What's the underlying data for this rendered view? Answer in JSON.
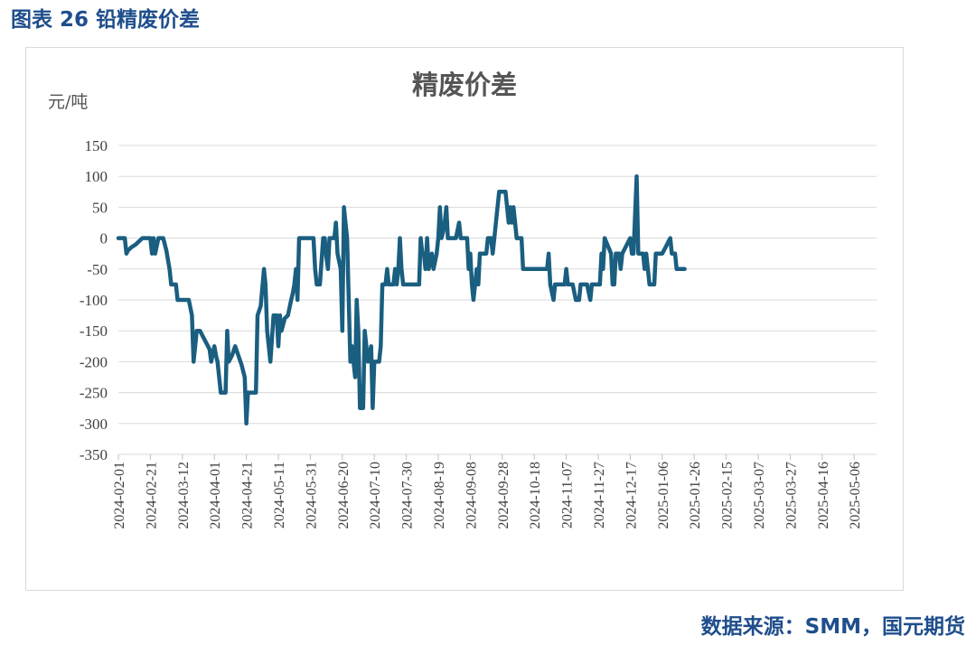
{
  "figure_title": "图表 26 铅精废价差",
  "source_note": "数据来源：SMM，国元期货",
  "colors": {
    "line": "#1a5e80",
    "grid": "#d9d9d9",
    "brand": "#1f4e8c"
  },
  "chart_data": {
    "type": "line",
    "title": "精废价差",
    "ylabel": "元/吨",
    "ylim": [
      -350,
      150
    ],
    "yticks": [
      150,
      100,
      50,
      0,
      -50,
      -100,
      -150,
      -200,
      -250,
      -300,
      -350
    ],
    "xlim": [
      "2024-02-01",
      "2025-05-20"
    ],
    "xticks": [
      "2024-02-01",
      "2024-02-21",
      "2024-03-12",
      "2024-04-01",
      "2024-04-21",
      "2024-05-11",
      "2024-05-31",
      "2024-06-20",
      "2024-07-10",
      "2024-07-30",
      "2024-08-19",
      "2024-09-08",
      "2024-09-28",
      "2024-10-18",
      "2024-11-07",
      "2024-11-27",
      "2024-12-17",
      "2025-01-06",
      "2025-01-26",
      "2025-02-15",
      "2025-03-07",
      "2025-03-27",
      "2025-04-16",
      "2025-05-06"
    ],
    "grid": true,
    "legend": "none",
    "series": [
      {
        "points": [
          [
            "2024-02-01",
            0
          ],
          [
            "2024-02-05",
            0
          ],
          [
            "2024-02-06",
            -25
          ],
          [
            "2024-02-07",
            -20
          ],
          [
            "2024-02-09",
            -15
          ],
          [
            "2024-02-12",
            -10
          ],
          [
            "2024-02-14",
            -5
          ],
          [
            "2024-02-16",
            0
          ],
          [
            "2024-02-19",
            0
          ],
          [
            "2024-02-20",
            0
          ],
          [
            "2024-02-21",
            0
          ],
          [
            "2024-02-22",
            -25
          ],
          [
            "2024-02-23",
            0
          ],
          [
            "2024-02-24",
            -25
          ],
          [
            "2024-02-26",
            0
          ],
          [
            "2024-02-27",
            0
          ],
          [
            "2024-02-29",
            0
          ],
          [
            "2024-03-02",
            -20
          ],
          [
            "2024-03-04",
            -50
          ],
          [
            "2024-03-05",
            -75
          ],
          [
            "2024-03-08",
            -75
          ],
          [
            "2024-03-09",
            -100
          ],
          [
            "2024-03-12",
            -100
          ],
          [
            "2024-03-16",
            -100
          ],
          [
            "2024-03-18",
            -125
          ],
          [
            "2024-03-19",
            -200
          ],
          [
            "2024-03-20",
            -175
          ],
          [
            "2024-03-21",
            -150
          ],
          [
            "2024-03-23",
            -150
          ],
          [
            "2024-03-25",
            -160
          ],
          [
            "2024-03-27",
            -170
          ],
          [
            "2024-03-29",
            -180
          ],
          [
            "2024-03-30",
            -200
          ],
          [
            "2024-04-01",
            -175
          ],
          [
            "2024-04-02",
            -190
          ],
          [
            "2024-04-03",
            -200
          ],
          [
            "2024-04-04",
            -225
          ],
          [
            "2024-04-05",
            -250
          ],
          [
            "2024-04-08",
            -250
          ],
          [
            "2024-04-09",
            -150
          ],
          [
            "2024-04-10",
            -200
          ],
          [
            "2024-04-12",
            -190
          ],
          [
            "2024-04-14",
            -175
          ],
          [
            "2024-04-16",
            -190
          ],
          [
            "2024-04-18",
            -205
          ],
          [
            "2024-04-20",
            -225
          ],
          [
            "2024-04-21",
            -300
          ],
          [
            "2024-04-22",
            -250
          ],
          [
            "2024-04-24",
            -250
          ],
          [
            "2024-04-27",
            -250
          ],
          [
            "2024-04-28",
            -125
          ],
          [
            "2024-04-30",
            -110
          ],
          [
            "2024-05-02",
            -50
          ],
          [
            "2024-05-03",
            -75
          ],
          [
            "2024-05-04",
            -150
          ],
          [
            "2024-05-06",
            -200
          ],
          [
            "2024-05-08",
            -125
          ],
          [
            "2024-05-10",
            -125
          ],
          [
            "2024-05-11",
            -175
          ],
          [
            "2024-05-12",
            -125
          ],
          [
            "2024-05-13",
            -150
          ],
          [
            "2024-05-15",
            -130
          ],
          [
            "2024-05-17",
            -125
          ],
          [
            "2024-05-19",
            -100
          ],
          [
            "2024-05-20",
            -90
          ],
          [
            "2024-05-21",
            -75
          ],
          [
            "2024-05-22",
            -50
          ],
          [
            "2024-05-23",
            -100
          ],
          [
            "2024-05-24",
            0
          ],
          [
            "2024-05-28",
            0
          ],
          [
            "2024-05-31",
            0
          ],
          [
            "2024-06-02",
            0
          ],
          [
            "2024-06-03",
            -50
          ],
          [
            "2024-06-04",
            -75
          ],
          [
            "2024-06-06",
            -75
          ],
          [
            "2024-06-08",
            0
          ],
          [
            "2024-06-09",
            0
          ],
          [
            "2024-06-10",
            -30
          ],
          [
            "2024-06-11",
            -50
          ],
          [
            "2024-06-12",
            0
          ],
          [
            "2024-06-15",
            0
          ],
          [
            "2024-06-16",
            25
          ],
          [
            "2024-06-17",
            -25
          ],
          [
            "2024-06-19",
            -50
          ],
          [
            "2024-06-20",
            -150
          ],
          [
            "2024-06-21",
            50
          ],
          [
            "2024-06-22",
            25
          ],
          [
            "2024-06-23",
            0
          ],
          [
            "2024-06-24",
            -100
          ],
          [
            "2024-06-25",
            -200
          ],
          [
            "2024-06-26",
            -175
          ],
          [
            "2024-06-27",
            -200
          ],
          [
            "2024-06-28",
            -225
          ],
          [
            "2024-06-29",
            -100
          ],
          [
            "2024-06-30",
            -150
          ],
          [
            "2024-07-01",
            -275
          ],
          [
            "2024-07-03",
            -275
          ],
          [
            "2024-07-04",
            -150
          ],
          [
            "2024-07-05",
            -175
          ],
          [
            "2024-07-06",
            -200
          ],
          [
            "2024-07-07",
            -190
          ],
          [
            "2024-07-08",
            -175
          ],
          [
            "2024-07-09",
            -275
          ],
          [
            "2024-07-10",
            -200
          ],
          [
            "2024-07-13",
            -200
          ],
          [
            "2024-07-14",
            -175
          ],
          [
            "2024-07-15",
            -75
          ],
          [
            "2024-07-17",
            -75
          ],
          [
            "2024-07-18",
            -50
          ],
          [
            "2024-07-19",
            -75
          ],
          [
            "2024-07-22",
            -75
          ],
          [
            "2024-07-23",
            -50
          ],
          [
            "2024-07-24",
            -75
          ],
          [
            "2024-07-25",
            -50
          ],
          [
            "2024-07-26",
            0
          ],
          [
            "2024-07-27",
            -50
          ],
          [
            "2024-07-28",
            -75
          ],
          [
            "2024-07-30",
            -75
          ],
          [
            "2024-08-05",
            -75
          ],
          [
            "2024-08-07",
            -75
          ],
          [
            "2024-08-08",
            0
          ],
          [
            "2024-08-09",
            -25
          ],
          [
            "2024-08-10",
            -25
          ],
          [
            "2024-08-11",
            -50
          ],
          [
            "2024-08-12",
            0
          ],
          [
            "2024-08-13",
            -50
          ],
          [
            "2024-08-15",
            -25
          ],
          [
            "2024-08-16",
            -50
          ],
          [
            "2024-08-18",
            -25
          ],
          [
            "2024-08-19",
            0
          ],
          [
            "2024-08-20",
            50
          ],
          [
            "2024-08-21",
            0
          ],
          [
            "2024-08-22",
            10
          ],
          [
            "2024-08-23",
            25
          ],
          [
            "2024-08-24",
            50
          ],
          [
            "2024-08-25",
            0
          ],
          [
            "2024-08-30",
            0
          ],
          [
            "2024-09-01",
            25
          ],
          [
            "2024-09-02",
            0
          ],
          [
            "2024-09-06",
            0
          ],
          [
            "2024-09-07",
            -50
          ],
          [
            "2024-09-08",
            -25
          ],
          [
            "2024-09-09",
            -75
          ],
          [
            "2024-09-10",
            -100
          ],
          [
            "2024-09-11",
            -75
          ],
          [
            "2024-09-12",
            -50
          ],
          [
            "2024-09-13",
            -75
          ],
          [
            "2024-09-14",
            -25
          ],
          [
            "2024-09-18",
            -25
          ],
          [
            "2024-09-19",
            0
          ],
          [
            "2024-09-20",
            0
          ],
          [
            "2024-09-21",
            0
          ],
          [
            "2024-09-22",
            -25
          ],
          [
            "2024-09-23",
            0
          ],
          [
            "2024-09-26",
            75
          ],
          [
            "2024-09-27",
            75
          ],
          [
            "2024-09-30",
            75
          ],
          [
            "2024-10-02",
            25
          ],
          [
            "2024-10-03",
            50
          ],
          [
            "2024-10-04",
            25
          ],
          [
            "2024-10-05",
            50
          ],
          [
            "2024-10-06",
            25
          ],
          [
            "2024-10-07",
            0
          ],
          [
            "2024-10-10",
            0
          ],
          [
            "2024-10-11",
            -50
          ],
          [
            "2024-10-15",
            -50
          ],
          [
            "2024-10-26",
            -50
          ],
          [
            "2024-10-27",
            -25
          ],
          [
            "2024-10-28",
            -75
          ],
          [
            "2024-10-30",
            -100
          ],
          [
            "2024-10-31",
            -75
          ],
          [
            "2024-11-03",
            -75
          ],
          [
            "2024-11-05",
            -75
          ],
          [
            "2024-11-06",
            -75
          ],
          [
            "2024-11-07",
            -50
          ],
          [
            "2024-11-08",
            -75
          ],
          [
            "2024-11-11",
            -75
          ],
          [
            "2024-11-13",
            -100
          ],
          [
            "2024-11-15",
            -100
          ],
          [
            "2024-11-16",
            -75
          ],
          [
            "2024-11-18",
            -75
          ],
          [
            "2024-11-20",
            -75
          ],
          [
            "2024-11-22",
            -100
          ],
          [
            "2024-11-23",
            -75
          ],
          [
            "2024-11-25",
            -75
          ],
          [
            "2024-11-28",
            -75
          ],
          [
            "2024-11-29",
            -25
          ],
          [
            "2024-11-30",
            -50
          ],
          [
            "2024-12-01",
            0
          ],
          [
            "2024-12-05",
            -25
          ],
          [
            "2024-12-06",
            -75
          ],
          [
            "2024-12-07",
            -75
          ],
          [
            "2024-12-08",
            -25
          ],
          [
            "2024-12-09",
            -25
          ],
          [
            "2024-12-10",
            -25
          ],
          [
            "2024-12-11",
            -50
          ],
          [
            "2024-12-12",
            -25
          ],
          [
            "2024-12-14",
            -15
          ],
          [
            "2024-12-16",
            -5
          ],
          [
            "2024-12-17",
            0
          ],
          [
            "2024-12-18",
            -25
          ],
          [
            "2024-12-19",
            -25
          ],
          [
            "2024-12-21",
            100
          ],
          [
            "2024-12-22",
            -25
          ],
          [
            "2024-12-23",
            -25
          ],
          [
            "2024-12-25",
            -25
          ],
          [
            "2024-12-26",
            -50
          ],
          [
            "2024-12-27",
            -25
          ],
          [
            "2024-12-28",
            -50
          ],
          [
            "2024-12-29",
            -75
          ],
          [
            "2025-01-01",
            -75
          ],
          [
            "2025-01-02",
            -25
          ],
          [
            "2025-01-04",
            -25
          ],
          [
            "2025-01-06",
            -25
          ],
          [
            "2025-01-08",
            -15
          ],
          [
            "2025-01-10",
            -5
          ],
          [
            "2025-01-11",
            0
          ],
          [
            "2025-01-12",
            -25
          ],
          [
            "2025-01-14",
            -25
          ],
          [
            "2025-01-15",
            -50
          ],
          [
            "2025-01-17",
            -50
          ],
          [
            "2025-01-20",
            -50
          ]
        ]
      }
    ]
  }
}
